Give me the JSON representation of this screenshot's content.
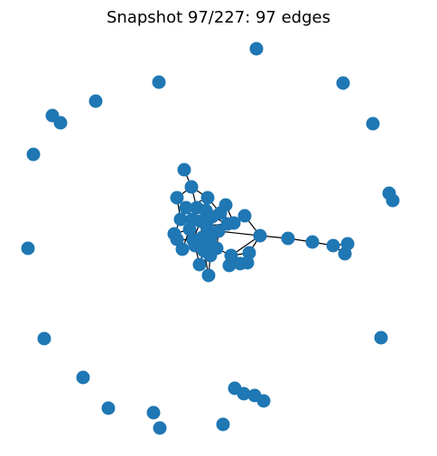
{
  "title": "Snapshot 97/227: 97 edges",
  "graph": {
    "node_color": "#1f77b4",
    "edge_color": "#000000"
  }
}
